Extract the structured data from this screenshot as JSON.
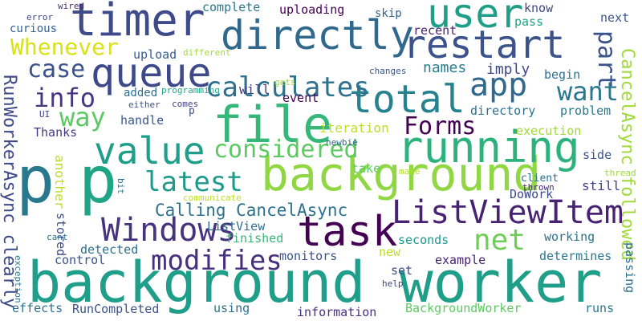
{
  "words": [
    {
      "id": "background-worker",
      "text": "background worker",
      "color": "#1f9e89"
    },
    {
      "id": "background",
      "text": "background",
      "color": "#90d743"
    },
    {
      "id": "file",
      "text": "file",
      "color": "#35b779"
    },
    {
      "id": "running",
      "text": "running",
      "color": "#2db27d"
    },
    {
      "id": "timer",
      "text": "timer",
      "color": "#3e4a89"
    },
    {
      "id": "directly",
      "text": "directly",
      "color": "#31688e"
    },
    {
      "id": "queue",
      "text": "queue",
      "color": "#3e4989"
    },
    {
      "id": "task",
      "text": "task",
      "color": "#440154"
    },
    {
      "id": "total",
      "text": "total",
      "color": "#26828e"
    },
    {
      "id": "value",
      "text": "value",
      "color": "#1f9e89"
    },
    {
      "id": "listviewitem",
      "text": "ListViewItem",
      "color": "#482374"
    },
    {
      "id": "user",
      "text": "user",
      "color": "#1f9e89"
    },
    {
      "id": "restart",
      "text": "restart",
      "color": "#3b528b"
    },
    {
      "id": "p-1",
      "text": "p",
      "color": "#2a788e"
    },
    {
      "id": "p-2",
      "text": "p",
      "color": "#20a486"
    },
    {
      "id": "windows",
      "text": "Windows",
      "color": "#46327e"
    },
    {
      "id": "app",
      "text": "app",
      "color": "#31688e"
    },
    {
      "id": "calculates",
      "text": "calculates",
      "color": "#2c728e"
    },
    {
      "id": "modifies",
      "text": "modifies",
      "color": "#472f7d"
    },
    {
      "id": "net",
      "text": "net",
      "color": "#6ece58"
    },
    {
      "id": "considered",
      "text": "considered",
      "color": "#5ec962"
    },
    {
      "id": "latest",
      "text": "latest",
      "color": "#1f998a"
    },
    {
      "id": "whenever",
      "text": "Whenever",
      "color": "#d8e219"
    },
    {
      "id": "forms",
      "text": "Forms",
      "color": "#440154"
    },
    {
      "id": "case",
      "text": "case",
      "color": "#3b528b"
    },
    {
      "id": "info",
      "text": "info",
      "color": "#453781"
    },
    {
      "id": "way",
      "text": "way",
      "color": "#5ec962"
    },
    {
      "id": "want",
      "text": "want",
      "color": "#2a788e"
    },
    {
      "id": "part",
      "text": "part",
      "color": "#3b528b"
    },
    {
      "id": "calling-cancelasync",
      "text": "Calling CancelAsync",
      "color": "#2c728e"
    },
    {
      "id": "cancelasync-followed",
      "text": "CancelAsync followed",
      "color": "#a0da39"
    },
    {
      "id": "runworkerasync-clearly",
      "text": "RunWorkerAsync clearly",
      "color": "#3e4a89"
    },
    {
      "id": "names",
      "text": "names",
      "color": "#287d8e"
    },
    {
      "id": "imply",
      "text": "imply",
      "color": "#3e4989"
    },
    {
      "id": "recent",
      "text": "recent",
      "color": "#482576"
    },
    {
      "id": "complete",
      "text": "complete",
      "color": "#2a788e"
    },
    {
      "id": "uploading",
      "text": "uploading",
      "color": "#440154"
    },
    {
      "id": "know",
      "text": "know",
      "color": "#3e4989"
    },
    {
      "id": "skip",
      "text": "skip",
      "color": "#33638d"
    },
    {
      "id": "pass",
      "text": "pass",
      "color": "#20a386"
    },
    {
      "id": "next",
      "text": "next",
      "color": "#3a548c"
    },
    {
      "id": "curious",
      "text": "curious",
      "color": "#355f8d"
    },
    {
      "id": "upload",
      "text": "upload",
      "color": "#365c8d"
    },
    {
      "id": "different",
      "text": "different",
      "color": "#a5db36"
    },
    {
      "id": "error",
      "text": "error",
      "color": "#3f4788"
    },
    {
      "id": "wired",
      "text": "wired",
      "color": "#482878"
    },
    {
      "id": "changes",
      "text": "changes",
      "color": "#39568c"
    },
    {
      "id": "begin",
      "text": "begin",
      "color": "#2d718e"
    },
    {
      "id": "will",
      "text": "will",
      "color": "#424086"
    },
    {
      "id": "gets",
      "text": "gets",
      "color": "#a0da39"
    },
    {
      "id": "added",
      "text": "added",
      "color": "#2e6e8e"
    },
    {
      "id": "either",
      "text": "either",
      "color": "#3b528b"
    },
    {
      "id": "event",
      "text": "event",
      "color": "#440154"
    },
    {
      "id": "programming",
      "text": "programming",
      "color": "#22a785"
    },
    {
      "id": "ui",
      "text": "UI",
      "color": "#3f4788"
    },
    {
      "id": "comes",
      "text": "comes",
      "color": "#424086"
    },
    {
      "id": "p-small",
      "text": "p",
      "color": "#3b528b"
    },
    {
      "id": "handle",
      "text": "handle",
      "color": "#38588c"
    },
    {
      "id": "directory",
      "text": "directory",
      "color": "#2c728e"
    },
    {
      "id": "problem",
      "text": "problem",
      "color": "#2a788e"
    },
    {
      "id": "thanks",
      "text": "Thanks",
      "color": "#443983"
    },
    {
      "id": "iteration",
      "text": "iteration",
      "color": "#bddf26"
    },
    {
      "id": "execution",
      "text": "execution",
      "color": "#a2da37"
    },
    {
      "id": "newbie",
      "text": "newbie",
      "color": "#32648e"
    },
    {
      "id": "side",
      "text": "side",
      "color": "#3b528b"
    },
    {
      "id": "take",
      "text": "take",
      "color": "#5ec962"
    },
    {
      "id": "make",
      "text": "make",
      "color": "#b5de2b"
    },
    {
      "id": "client",
      "text": "client",
      "color": "#2d708e"
    },
    {
      "id": "thread",
      "text": "thread",
      "color": "#a0da39"
    },
    {
      "id": "bit",
      "text": "bit",
      "color": "#2d708e"
    },
    {
      "id": "another",
      "text": "another",
      "color": "#bddf26"
    },
    {
      "id": "thrown",
      "text": "thrown",
      "color": "#482576"
    },
    {
      "id": "dowork",
      "text": "DoWork",
      "color": "#3e4989"
    },
    {
      "id": "still",
      "text": "still",
      "color": "#424086"
    },
    {
      "id": "communicate",
      "text": "communicate",
      "color": "#bddf26"
    },
    {
      "id": "listview",
      "text": "ListView",
      "color": "#2e6e8e"
    },
    {
      "id": "stored",
      "text": "stored",
      "color": "#3f4788"
    },
    {
      "id": "finished",
      "text": "finished",
      "color": "#35b779"
    },
    {
      "id": "seconds",
      "text": "seconds",
      "color": "#1f968b"
    },
    {
      "id": "working",
      "text": "working",
      "color": "#2c728e"
    },
    {
      "id": "cant",
      "text": "cant",
      "color": "#2d718e"
    },
    {
      "id": "detected",
      "text": "detected",
      "color": "#2d708e"
    },
    {
      "id": "control",
      "text": "control",
      "color": "#3b528b"
    },
    {
      "id": "monitors",
      "text": "monitors",
      "color": "#3b528b"
    },
    {
      "id": "new",
      "text": "new",
      "color": "#bddf26"
    },
    {
      "id": "example",
      "text": "example",
      "color": "#482374"
    },
    {
      "id": "determines",
      "text": "determines",
      "color": "#2a788e"
    },
    {
      "id": "set",
      "text": "set",
      "color": "#3e4989"
    },
    {
      "id": "passing",
      "text": "passing",
      "color": "#2c728e"
    },
    {
      "id": "exception",
      "text": "exception",
      "color": "#2a788e"
    },
    {
      "id": "help",
      "text": "help",
      "color": "#414487"
    },
    {
      "id": "effects",
      "text": "effects",
      "color": "#2c728e"
    },
    {
      "id": "runcompleted",
      "text": "RunCompleted",
      "color": "#3b528b"
    },
    {
      "id": "using",
      "text": "using",
      "color": "#2c728e"
    },
    {
      "id": "information",
      "text": "information",
      "color": "#46327e"
    },
    {
      "id": "backgroundworker",
      "text": "BackgroundWorker",
      "color": "#5ec962"
    },
    {
      "id": "runs",
      "text": "runs",
      "color": "#2a788e"
    }
  ]
}
